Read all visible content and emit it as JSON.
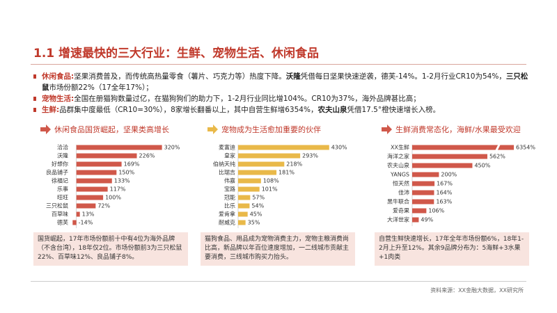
{
  "title": "1.1 增速最快的三大行业：生鲜、宠物生活、休闲食品",
  "bullets": [
    {
      "label": "休闲食品:",
      "segments": [
        {
          "text": "坚果消费普及，而传统高热量零食（薯片、巧克力等）热度下降。"
        },
        {
          "text": "沃隆",
          "bold": true
        },
        {
          "text": "凭借每日坚果快速逆袭，德芙-14%。1-2月行业CR10为54%，"
        },
        {
          "text": "三只松鼠",
          "bold": true
        },
        {
          "text": "市场份额22%（17全年17%）；"
        }
      ]
    },
    {
      "label": "宠物生活:",
      "segments": [
        {
          "text": "全国在册猫狗数量过亿，在猫狗狗们的助力下，1-2月行业同比增104%。CR10为37%，海外品牌甚比高；"
        }
      ]
    },
    {
      "label": "生鲜:",
      "segments": [
        {
          "text": "品群集中度最低（CR10=30%），8家增长翻番以上，其中自营生鲜增6354%，"
        },
        {
          "text": "农夫山泉",
          "bold": true
        },
        {
          "text": "凭借17.5°橙快速增长入榜。"
        }
      ]
    }
  ],
  "chart_data": [
    {
      "type": "hbar",
      "title": "休闲食品国货崛起，坚果类高增长",
      "color": "#d0584a",
      "categories": [
        "洽洽",
        "沃隆",
        "好想你",
        "良品铺子",
        "徐福记",
        "乐事",
        "旺旺",
        "三只松鼠",
        "百草味",
        "德芙"
      ],
      "values": [
        320,
        226,
        169,
        150,
        133,
        117,
        100,
        72,
        13,
        -14
      ],
      "value_labels": [
        "320%",
        "226%",
        "169%",
        "150%",
        "133%",
        "117%",
        "100%",
        "72%",
        "13%",
        "-14%"
      ],
      "xlim": [
        -20,
        360
      ],
      "note": "国货崛起，17年市场份额前十中有4位为海外品牌（不含台湾），18年仅2位。市场份额前3为三只松鼠22%、百草味12%、良品铺子8%。"
    },
    {
      "type": "hbar",
      "title": "宠物成为生活愈加重要的伙伴",
      "color": "#e9b949",
      "categories": [
        "麦富迪",
        "皇家",
        "伯纳天纯",
        "比瑞吉",
        "伟嘉",
        "宝路",
        "冠能",
        "比乐",
        "爱肯拿",
        "耐威克"
      ],
      "values": [
        430,
        293,
        218,
        181,
        108,
        101,
        57,
        54,
        45,
        35
      ],
      "value_labels": [
        "430%",
        "293%",
        "218%",
        "181%",
        "108%",
        "101%",
        "57%",
        "54%",
        "45%",
        "35%"
      ],
      "xlim": [
        0,
        480
      ],
      "note": "猫狗食品、用品成为宠物消费主力，宠物主粮消费尚比高，新品牌以年百位速度增加，一二线城市贡献主要消费，三线城市购买力抬头。"
    },
    {
      "type": "hbar",
      "title": "生鲜消费常态化，海鲜/水果最受欢迎",
      "color": "#d0584a",
      "axis_break": true,
      "categories": [
        "XX生鲜",
        "海洋之家",
        "农夫山泉",
        "YANGS",
        "恒天然",
        "佳沛",
        "黑牛联合",
        "爱奇果",
        "大洋世家"
      ],
      "values": [
        6354,
        562,
        450,
        200,
        167,
        164,
        163,
        106,
        49
      ],
      "value_labels": [
        "6354%",
        "562%",
        "450%",
        "200%",
        "167%",
        "164%",
        "163%",
        "106%",
        "49%"
      ],
      "xlim": [
        0,
        760
      ],
      "note": "自营生鲜快速增长，17年全年市场份额6%，18年1-2月上升至12%。其余9品牌分布为：5海鲜+3水果+1肉类"
    }
  ],
  "source": "资料来源：XX金融大数据，XX研究所"
}
